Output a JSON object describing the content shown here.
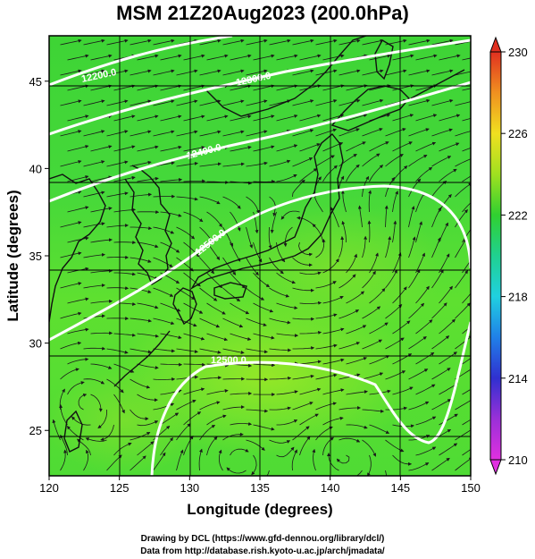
{
  "title": "MSM 21Z20Aug2023 (200.0hPa)",
  "xlabel": "Longitude (degrees)",
  "ylabel": "Latitude  (degrees)",
  "x_ticks": [
    "120",
    "125",
    "130",
    "135",
    "140",
    "145",
    "150"
  ],
  "y_ticks": [
    "25",
    "30",
    "35",
    "40",
    "45"
  ],
  "colorbar_ticks": [
    "210",
    "214",
    "218",
    "222",
    "226",
    "230"
  ],
  "contour_labels": [
    "12200.0",
    "12300.0",
    "12400.0",
    "12500.0",
    "12500.0"
  ],
  "credits": {
    "line1": "Drawing by DCL (https://www.gfd-dennou.org/library/dcl/)",
    "line2": "Data from http://database.rish.kyoto-u.ac.jp/arch/jmadata/"
  },
  "chart_data": {
    "type": "heatmap",
    "title": "MSM 21Z20Aug2023 (200.0hPa)",
    "xlabel": "Longitude (degrees)",
    "ylabel": "Latitude  (degrees)",
    "xlim": [
      120,
      150
    ],
    "ylim": [
      22.4,
      47.6
    ],
    "colorbar_range": [
      210,
      230
    ],
    "colorbar_ticks": [
      210,
      214,
      218,
      222,
      226,
      230
    ],
    "contours": [
      {
        "label": "12200.0"
      },
      {
        "label": "12300.0"
      },
      {
        "label": "12400.0"
      },
      {
        "label": "12500.0"
      }
    ],
    "grid": true,
    "colors": {
      "field_main": "#39d633",
      "field_warm": "#8ce62a",
      "contour": "#ffffff",
      "vectors": "#1a1a1a",
      "coastline": "#111111"
    }
  }
}
